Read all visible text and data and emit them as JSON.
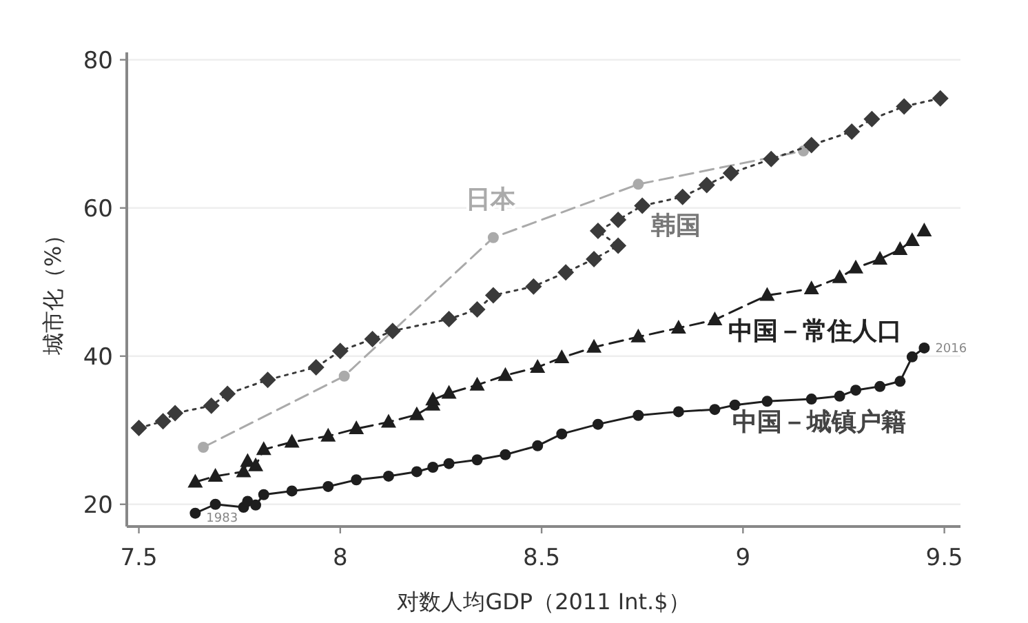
{
  "chart_data": {
    "type": "line",
    "xlabel": "对数人均GDP（2011 Int.$）",
    "ylabel": "城市化（%）",
    "xlim": [
      7.47,
      9.54
    ],
    "ylim": [
      17,
      81
    ],
    "xticks": [
      7.5,
      8,
      8.5,
      9,
      9.5
    ],
    "yticks": [
      20,
      40,
      60,
      80
    ],
    "grid": "y",
    "series": [
      {
        "name": "日本",
        "color": "#aaaaaa",
        "marker": "circle",
        "line_style": "dashed",
        "x": [
          7.66,
          8.01,
          8.38,
          8.74,
          9.15
        ],
        "values": [
          27.7,
          37.3,
          56.0,
          63.2,
          67.7
        ]
      },
      {
        "name": "韩国",
        "color": "#3a3a3a",
        "marker": "diamond",
        "line_style": "dotted",
        "x": [
          7.5,
          7.56,
          7.59,
          7.68,
          7.72,
          7.82,
          7.94,
          8.0,
          8.08,
          8.13,
          8.27,
          8.34,
          8.38,
          8.48,
          8.56,
          8.63,
          8.69,
          8.64,
          8.69,
          8.75,
          8.85,
          8.91,
          8.97,
          9.07,
          9.17,
          9.27,
          9.32,
          9.4,
          9.49
        ],
        "values": [
          30.3,
          31.2,
          32.3,
          33.3,
          34.9,
          36.8,
          38.5,
          40.7,
          42.3,
          43.4,
          45.0,
          46.3,
          48.2,
          49.4,
          51.3,
          53.1,
          54.9,
          56.9,
          58.4,
          60.3,
          61.5,
          63.1,
          64.7,
          66.6,
          68.5,
          70.3,
          72.0,
          73.7,
          74.8
        ]
      },
      {
        "name": "中国－常住人口",
        "color": "#1e1e1e",
        "marker": "triangle",
        "line_style": "dashed",
        "x": [
          7.64,
          7.69,
          7.76,
          7.77,
          7.79,
          7.81,
          7.88,
          7.97,
          8.04,
          8.12,
          8.19,
          8.23,
          8.23,
          8.27,
          8.34,
          8.41,
          8.49,
          8.55,
          8.63,
          8.74,
          8.84,
          8.93,
          9.06,
          9.17,
          9.24,
          9.28,
          9.34,
          9.39,
          9.42,
          9.45
        ],
        "values": [
          23.0,
          23.8,
          24.4,
          25.8,
          25.2,
          27.4,
          28.4,
          29.2,
          30.2,
          31.1,
          32.1,
          33.4,
          34.1,
          35.0,
          36.1,
          37.4,
          38.5,
          39.8,
          41.2,
          42.6,
          43.8,
          44.9,
          48.2,
          49.1,
          50.6,
          51.9,
          53.1,
          54.4,
          55.6,
          56.9
        ]
      },
      {
        "name": "中国－城镇户籍",
        "color": "#1e1e1e",
        "marker": "circle",
        "line_style": "solid",
        "x": [
          7.64,
          7.69,
          7.76,
          7.77,
          7.79,
          7.81,
          7.88,
          7.97,
          8.04,
          8.12,
          8.19,
          8.23,
          8.27,
          8.34,
          8.41,
          8.49,
          8.55,
          8.64,
          8.74,
          8.84,
          8.93,
          8.98,
          9.06,
          9.17,
          9.24,
          9.28,
          9.34,
          9.39,
          9.42,
          9.45
        ],
        "values": [
          18.8,
          20.0,
          19.6,
          20.4,
          19.9,
          21.3,
          21.8,
          22.4,
          23.3,
          23.8,
          24.4,
          25.0,
          25.5,
          26.0,
          26.7,
          27.9,
          29.5,
          30.8,
          32.0,
          32.5,
          32.8,
          33.4,
          33.9,
          34.2,
          34.6,
          35.4,
          35.9,
          36.6,
          39.9,
          41.1
        ]
      }
    ],
    "annotations": [
      {
        "text": "1983",
        "x": 7.64,
        "y": 18.8
      },
      {
        "text": "2016",
        "x": 9.45,
        "y": 41.1
      }
    ]
  }
}
